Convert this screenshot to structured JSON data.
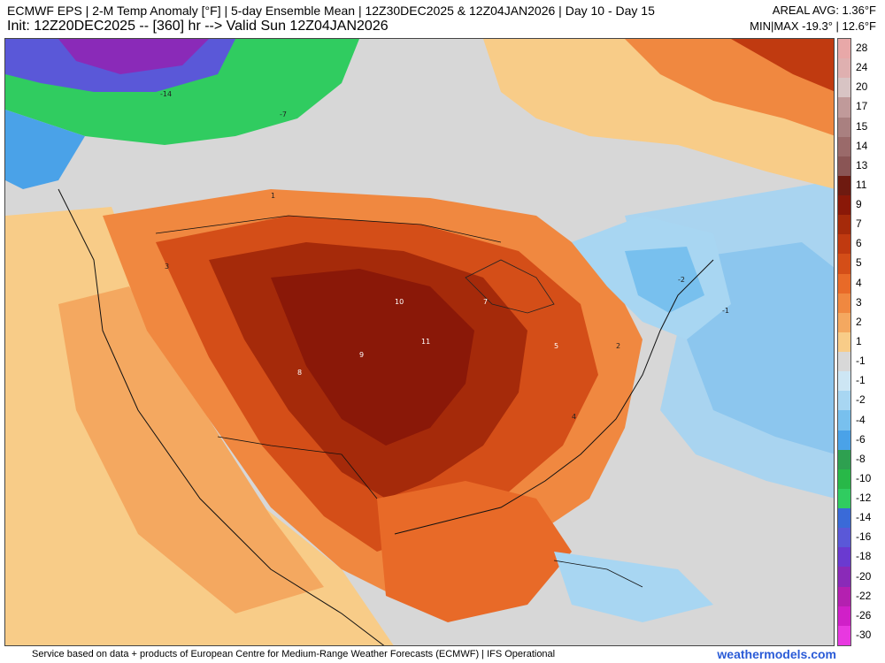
{
  "header": {
    "title": "ECMWF EPS | 2-M Temp Anomaly [°F] | 5-day Ensemble Mean | 12Z30DEC2025 & 12Z04JAN2026 | Day 10 - Day 15",
    "init": "Init: 12Z20DEC2025 -- [360] hr --> Valid Sun 12Z04JAN2026",
    "areal_avg": "AREAL AVG: 1.36°F",
    "min_max": "MIN|MAX -19.3° | 12.6°F"
  },
  "map": {
    "region": "North America",
    "field": "2-m temperature anomaly (°F)",
    "regions": [
      {
        "name": "central-us-warm-core",
        "anomaly": 10
      },
      {
        "name": "texas-gulf-warm",
        "anomaly": 9
      },
      {
        "name": "rockies-plains-warm",
        "anomaly": 8
      },
      {
        "name": "great-lakes-ohio-valley-warm",
        "anomaly": 5
      },
      {
        "name": "southeast-warm",
        "anomaly": 4
      },
      {
        "name": "west-coast-mild",
        "anomaly": 3
      },
      {
        "name": "northeast-cool",
        "anomaly": -2
      },
      {
        "name": "atlantic-cool",
        "anomaly": -2
      },
      {
        "name": "caribbean-cool",
        "anomaly": -1
      },
      {
        "name": "northwest-canada-cold",
        "anomaly": -14
      }
    ],
    "labels": [
      {
        "text": "-14",
        "tone": "dark"
      },
      {
        "text": "-7",
        "tone": "dark"
      },
      {
        "text": "10",
        "tone": "light"
      },
      {
        "text": "11",
        "tone": "light"
      },
      {
        "text": "9",
        "tone": "light"
      },
      {
        "text": "8",
        "tone": "light"
      },
      {
        "text": "7",
        "tone": "light"
      },
      {
        "text": "5",
        "tone": "light"
      },
      {
        "text": "4",
        "tone": "dark"
      },
      {
        "text": "3",
        "tone": "dark"
      },
      {
        "text": "2",
        "tone": "dark"
      },
      {
        "text": "1",
        "tone": "dark"
      },
      {
        "text": "-1",
        "tone": "dark"
      },
      {
        "text": "-2",
        "tone": "dark"
      }
    ]
  },
  "legend": {
    "unit": "°F",
    "entries": [
      {
        "label": "28",
        "color": "#e8a8a8"
      },
      {
        "label": "24",
        "color": "#dfb0b0"
      },
      {
        "label": "20",
        "color": "#d8c4c4"
      },
      {
        "label": "17",
        "color": "#c09a9a"
      },
      {
        "label": "15",
        "color": "#a98080"
      },
      {
        "label": "14",
        "color": "#9a6a6a"
      },
      {
        "label": "13",
        "color": "#8a5555"
      },
      {
        "label": "11",
        "color": "#6e1a10"
      },
      {
        "label": "9",
        "color": "#8a1808"
      },
      {
        "label": "7",
        "color": "#a52a0a"
      },
      {
        "label": "6",
        "color": "#c03a10"
      },
      {
        "label": "5",
        "color": "#d44e18"
      },
      {
        "label": "4",
        "color": "#e86a28"
      },
      {
        "label": "3",
        "color": "#f08840"
      },
      {
        "label": "2",
        "color": "#f4a860"
      },
      {
        "label": "1",
        "color": "#f8cc88"
      },
      {
        "label": "-1",
        "color": "#d8d8d8"
      },
      {
        "label": "-1",
        "color": "#cde6f4"
      },
      {
        "label": "-2",
        "color": "#a8d6f2"
      },
      {
        "label": "-4",
        "color": "#78c0ee"
      },
      {
        "label": "-6",
        "color": "#4aa2e8"
      },
      {
        "label": "-8",
        "color": "#2ea050"
      },
      {
        "label": "-10",
        "color": "#28b848"
      },
      {
        "label": "-12",
        "color": "#30cc60"
      },
      {
        "label": "-14",
        "color": "#3a6ad8"
      },
      {
        "label": "-16",
        "color": "#5a58d8"
      },
      {
        "label": "-18",
        "color": "#6a3ad0"
      },
      {
        "label": "-20",
        "color": "#8a2ab8"
      },
      {
        "label": "-22",
        "color": "#b420b0"
      },
      {
        "label": "-26",
        "color": "#d020c8"
      },
      {
        "label": "-30",
        "color": "#e838e0"
      }
    ]
  },
  "footer": {
    "credit": "Service based on data + products of European Centre for Medium-Range Weather Forecasts (ECMWF) | IFS Operational",
    "site": "weathermodels.com"
  }
}
